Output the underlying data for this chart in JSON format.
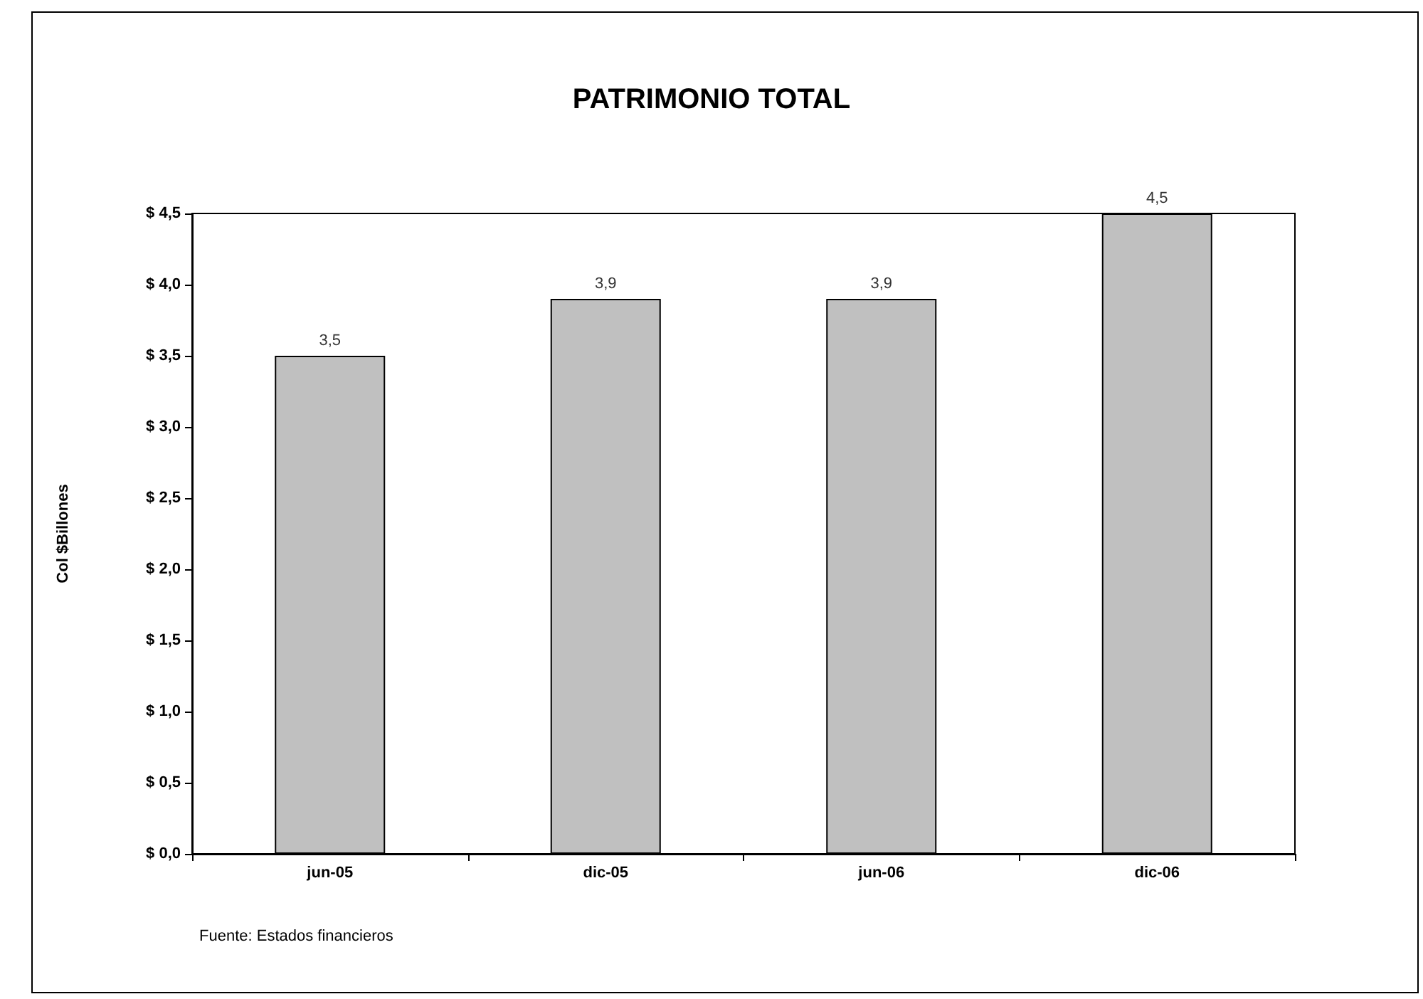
{
  "chart_data": {
    "type": "bar",
    "title": "PATRIMONIO TOTAL",
    "ylabel": "Col $Billones",
    "categories": [
      "jun-05",
      "dic-05",
      "jun-06",
      "dic-06"
    ],
    "values": [
      3.5,
      3.9,
      3.9,
      4.5
    ],
    "color": "#c0c0c0",
    "value_labels": [
      "3,5",
      "3,9",
      "3,9",
      "4,5"
    ],
    "ylim": [
      0,
      4.5
    ],
    "yticks": [
      {
        "value": 0,
        "label": "$ 0,0"
      },
      {
        "value": 0.5,
        "label": "$ 0,5"
      },
      {
        "value": 1,
        "label": "$ 1,0"
      },
      {
        "value": 1.5,
        "label": "$ 1,5"
      },
      {
        "value": 2,
        "label": "$ 2,0"
      },
      {
        "value": 2.5,
        "label": "$ 2,5"
      },
      {
        "value": 3,
        "label": "$ 3,0"
      },
      {
        "value": 3.5,
        "label": "$ 3,5"
      },
      {
        "value": 4,
        "label": "$ 4,0"
      },
      {
        "value": 4.5,
        "label": "$ 4,5"
      }
    ],
    "annotations": [
      "Fuente: Estados financieros"
    ]
  }
}
